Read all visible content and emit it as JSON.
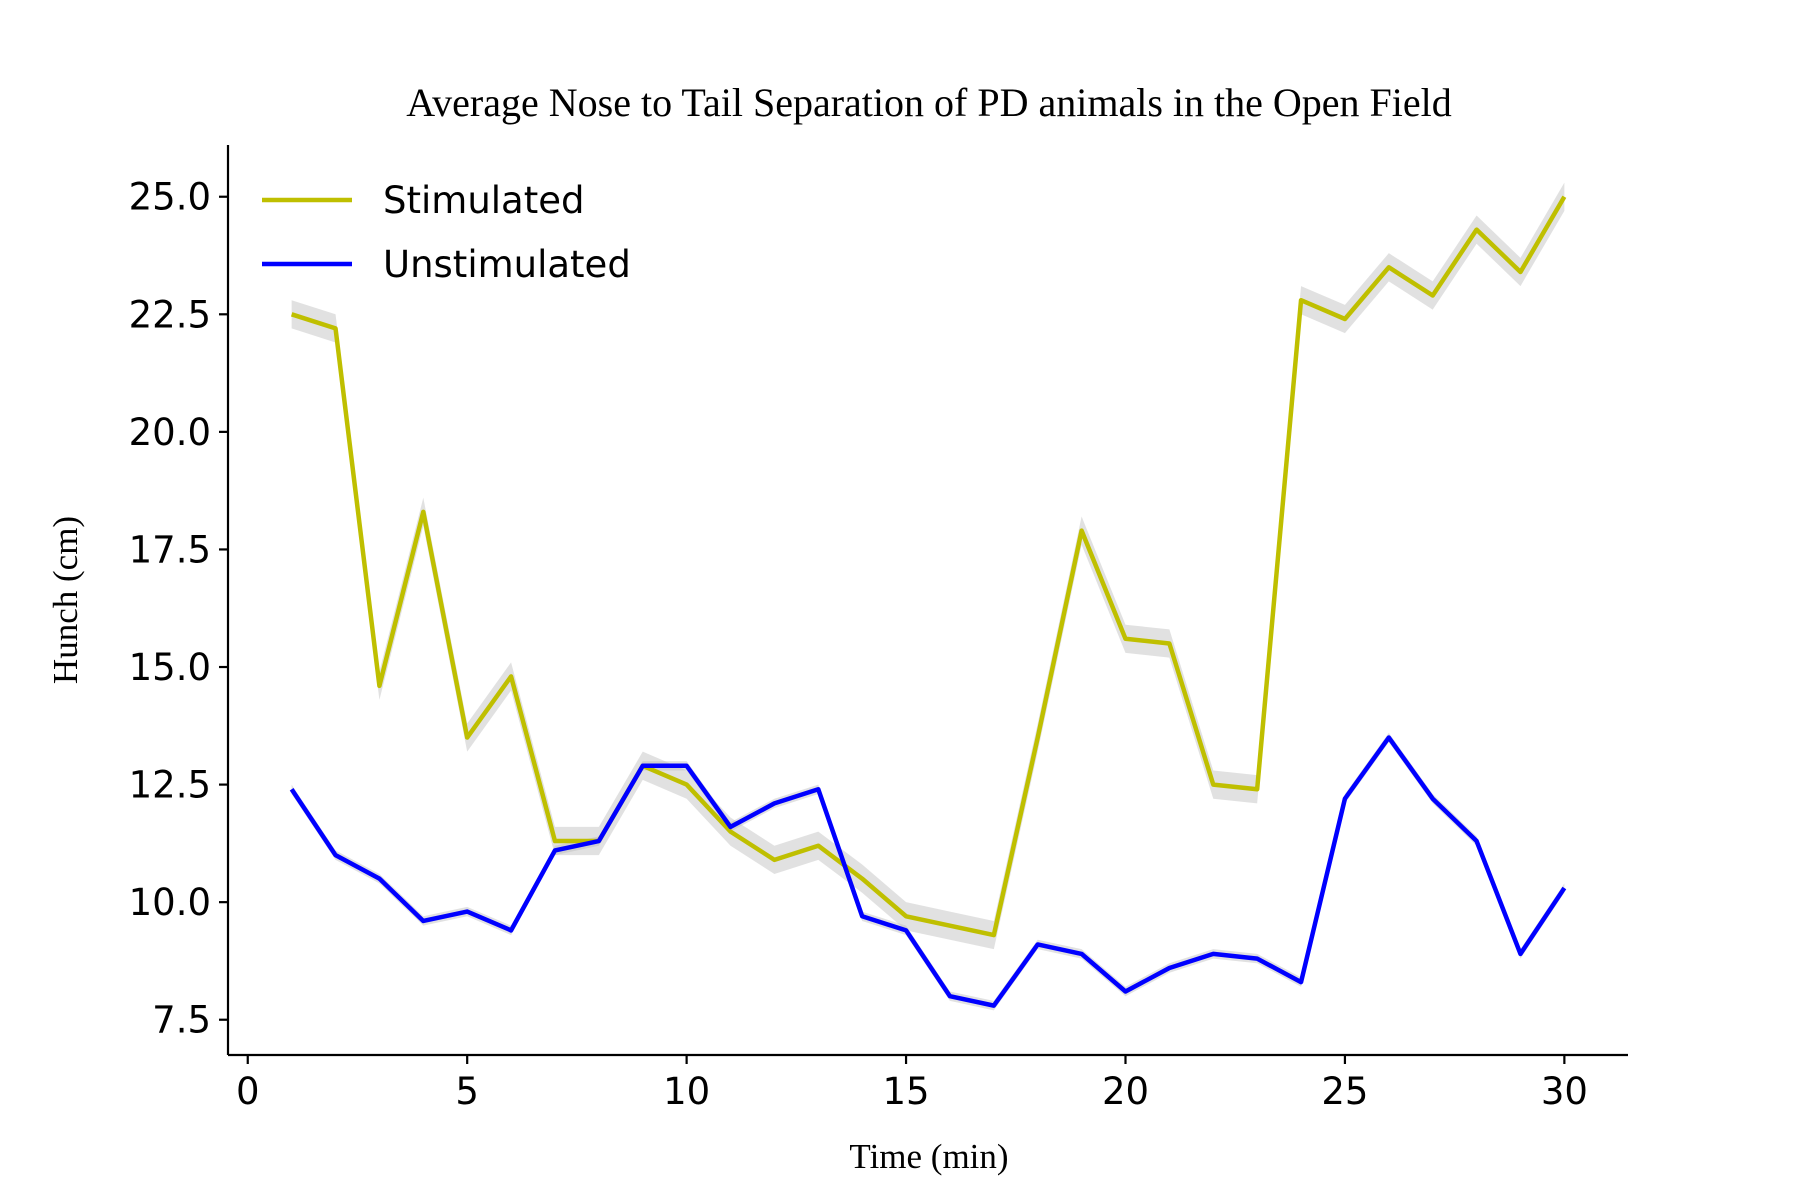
{
  "chart_data": {
    "type": "line",
    "title": "Average Nose to Tail Separation of PD animals in the Open Field",
    "xlabel": "Time (min)",
    "ylabel": "Hunch (cm)",
    "xlim": [
      -0.45,
      31.45
    ],
    "ylim": [
      6.75,
      26.1
    ],
    "xticks": [
      0,
      5,
      10,
      15,
      20,
      25,
      30
    ],
    "xtick_labels": [
      "0",
      "5",
      "10",
      "15",
      "20",
      "25",
      "30"
    ],
    "yticks": [
      7.5,
      10.0,
      12.5,
      15.0,
      17.5,
      20.0,
      22.5,
      25.0
    ],
    "ytick_labels": [
      "7.5",
      "10.0",
      "12.5",
      "15.0",
      "17.5",
      "20.0",
      "22.5",
      "25.0"
    ],
    "grid": false,
    "legend_position": "top-left",
    "x": [
      1,
      2,
      3,
      4,
      5,
      6,
      7,
      8,
      9,
      10,
      11,
      12,
      13,
      14,
      15,
      16,
      17,
      18,
      19,
      20,
      21,
      22,
      23,
      24,
      25,
      26,
      27,
      28,
      29,
      30
    ],
    "series": [
      {
        "name": "Stimulated",
        "color": "#bfbf00",
        "values": [
          22.5,
          22.2,
          14.6,
          18.3,
          13.5,
          14.8,
          11.3,
          11.3,
          12.9,
          12.5,
          11.5,
          10.9,
          11.2,
          10.5,
          9.7,
          9.5,
          9.3,
          13.5,
          17.9,
          15.6,
          15.5,
          12.5,
          12.4,
          22.8,
          22.4,
          23.5,
          22.9,
          24.3,
          23.4,
          25.0
        ],
        "ci": 0.3
      },
      {
        "name": "Unstimulated",
        "color": "#0000ff",
        "values": [
          12.4,
          11.0,
          10.5,
          9.6,
          9.8,
          9.4,
          11.1,
          11.3,
          12.9,
          12.9,
          11.6,
          12.1,
          12.4,
          9.7,
          9.4,
          8.0,
          7.8,
          9.1,
          8.9,
          8.1,
          8.6,
          8.9,
          8.8,
          8.3,
          12.2,
          13.5,
          12.2,
          11.3,
          8.9,
          10.3
        ],
        "ci": 0.1
      }
    ]
  },
  "ui": {
    "band_color": "#bdbdbd"
  }
}
